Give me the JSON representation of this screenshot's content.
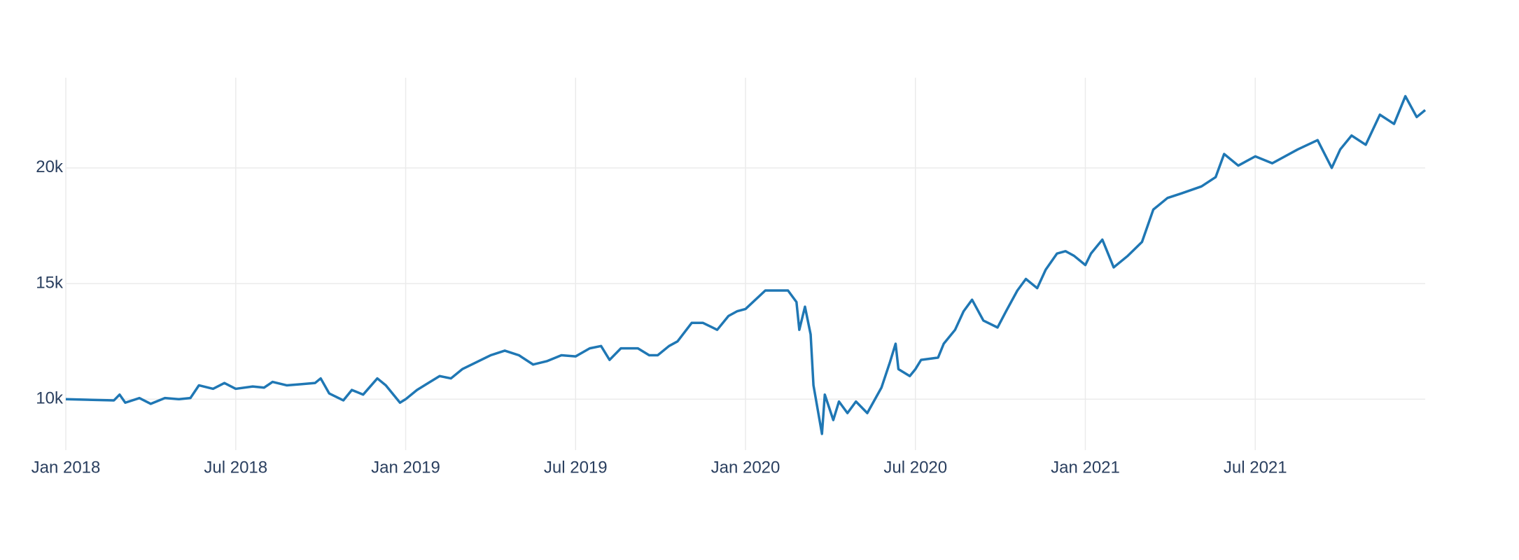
{
  "chart_data": {
    "type": "line",
    "color": "#1f77b4",
    "grid": true,
    "x": [
      0,
      1.7,
      1.9,
      2.1,
      2.6,
      3.0,
      3.5,
      4.0,
      4.4,
      4.7,
      5.2,
      5.6,
      6.0,
      6.6,
      7.0,
      7.3,
      7.8,
      8.3,
      8.8,
      9.0,
      9.3,
      9.8,
      10.1,
      10.5,
      11.0,
      11.3,
      11.8,
      12.0,
      12.4,
      12.8,
      13.2,
      13.6,
      14.0,
      14.5,
      15.0,
      15.5,
      16.0,
      16.5,
      17.0,
      17.5,
      18.0,
      18.5,
      18.9,
      19.2,
      19.6,
      20.2,
      20.6,
      20.9,
      21.3,
      21.6,
      22.1,
      22.5,
      23.0,
      23.4,
      23.7,
      24.0,
      24.7,
      25.5,
      25.8,
      25.9,
      26.1,
      26.3,
      26.4,
      26.7,
      26.8,
      27.1,
      27.3,
      27.6,
      27.9,
      28.3,
      28.8,
      29.1,
      29.3,
      29.4,
      29.8,
      30.0,
      30.2,
      30.8,
      31.0,
      31.4,
      31.7,
      32.0,
      32.4,
      32.9,
      33.2,
      33.6,
      33.9,
      34.3,
      34.6,
      35.0,
      35.3,
      35.6,
      36.0,
      36.2,
      36.6,
      37.0,
      37.5,
      38.0,
      38.4,
      38.9,
      39.4,
      40.1,
      40.6,
      40.9,
      41.4,
      42.0,
      42.6,
      43.5,
      44.2,
      44.7,
      45.0,
      45.4,
      45.9,
      46.4,
      46.9,
      47.3,
      47.7,
      48.0
    ],
    "values": [
      10000,
      9950,
      10200,
      9850,
      10050,
      9800,
      10050,
      10000,
      10050,
      10600,
      10450,
      10700,
      10450,
      10550,
      10500,
      10750,
      10600,
      10650,
      10700,
      10900,
      10250,
      9950,
      10400,
      10200,
      10900,
      10600,
      9850,
      10000,
      10400,
      10700,
      11000,
      10900,
      11300,
      11600,
      11900,
      12100,
      11900,
      11500,
      11650,
      11900,
      11850,
      12200,
      12300,
      11700,
      12200,
      12200,
      11900,
      11900,
      12300,
      12500,
      13300,
      13300,
      13000,
      13600,
      13800,
      13900,
      14700,
      14700,
      14200,
      13000,
      14000,
      12800,
      10600,
      8500,
      10200,
      9100,
      9900,
      9400,
      9900,
      9400,
      10500,
      11600,
      12400,
      11300,
      11000,
      11300,
      11700,
      11800,
      12400,
      13000,
      13800,
      14300,
      13400,
      13100,
      13800,
      14700,
      15200,
      14800,
      15600,
      16300,
      16400,
      16200,
      15800,
      16300,
      16900,
      15700,
      16200,
      16800,
      18200,
      18700,
      18900,
      19200,
      19600,
      20600,
      20100,
      20500,
      20200,
      20800,
      21200,
      20000,
      20800,
      21400,
      21000,
      22300,
      21900,
      23100,
      22200,
      22500
    ],
    "xlim": [
      0,
      48
    ],
    "xticks": [
      {
        "value": 0,
        "label": "Jan 2018"
      },
      {
        "value": 6,
        "label": "Jul 2018"
      },
      {
        "value": 12,
        "label": "Jan 2019"
      },
      {
        "value": 18,
        "label": "Jul 2019"
      },
      {
        "value": 24,
        "label": "Jan 2020"
      },
      {
        "value": 30,
        "label": "Jul 2020"
      },
      {
        "value": 36,
        "label": "Jan 2021"
      },
      {
        "value": 42,
        "label": "Jul 2021"
      }
    ],
    "ylim": [
      7800,
      23900
    ],
    "yticks": [
      {
        "value": 10000,
        "label": "10k"
      },
      {
        "value": 15000,
        "label": "15k"
      },
      {
        "value": 20000,
        "label": "20k"
      }
    ]
  }
}
